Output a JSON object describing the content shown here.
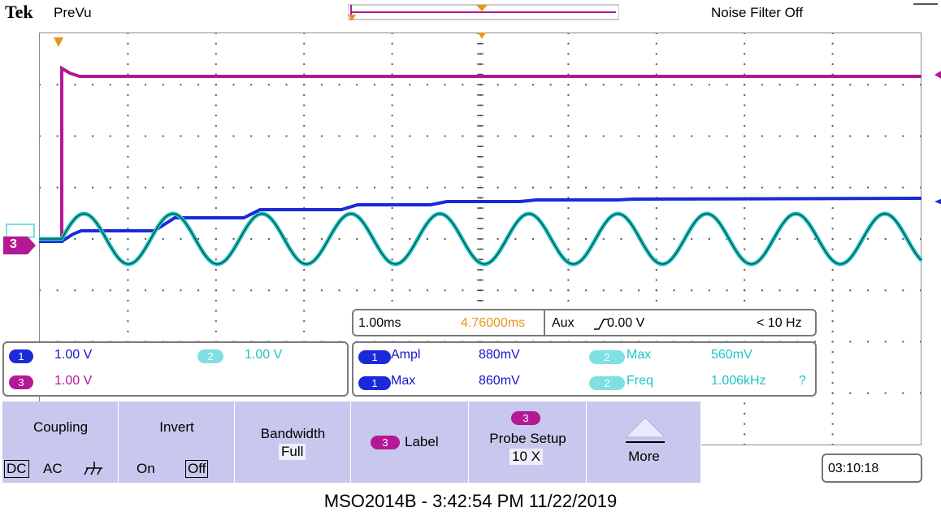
{
  "colors": {
    "ch1": "#1a2ad8",
    "ch2": "#20c4c4",
    "ch3": "#b41894",
    "softkey_bg": "#c8c8ee",
    "highlight": "#e8961a"
  },
  "topbar": {
    "brand": "Tek",
    "mode": "PreVu",
    "noise_filter": "Noise Filter Off"
  },
  "markers": {
    "ch3_ref": "3",
    "trigger_marker": "T"
  },
  "timebase": {
    "scale": "1.00ms",
    "position": "4.76000ms",
    "source": "Aux",
    "edge_icon": "rising-edge-icon",
    "level": "0.00 V",
    "freq": "< 10 Hz"
  },
  "channels": [
    {
      "num": "1",
      "scale": "1.00 V"
    },
    {
      "num": "2",
      "scale": "1.00 V"
    },
    {
      "num": "3",
      "scale": "1.00 V"
    }
  ],
  "measurements": [
    {
      "ch": "1",
      "label": "Ampl",
      "value": "880mV"
    },
    {
      "ch": "2",
      "label": "Max",
      "value": "560mV"
    },
    {
      "ch": "1",
      "label": "Max",
      "value": "860mV"
    },
    {
      "ch": "2",
      "label": "Freq",
      "value": "1.006kHz",
      "flag": "?"
    }
  ],
  "softkeys": {
    "coupling": {
      "title": "Coupling",
      "options": [
        "DC",
        "AC"
      ],
      "ground_icon": "ground-icon"
    },
    "invert": {
      "title": "Invert",
      "options": [
        "On",
        "Off"
      ]
    },
    "bandwidth": {
      "title": "Bandwidth",
      "value": "Full"
    },
    "label": {
      "ch": "3",
      "title": "Label"
    },
    "probe_setup": {
      "ch": "3",
      "title": "Probe Setup",
      "value": "10 X"
    },
    "more": {
      "title": "More"
    }
  },
  "clock": "03:10:18",
  "footer": "MSO2014B - 3:42:54 PM    11/22/2019"
}
